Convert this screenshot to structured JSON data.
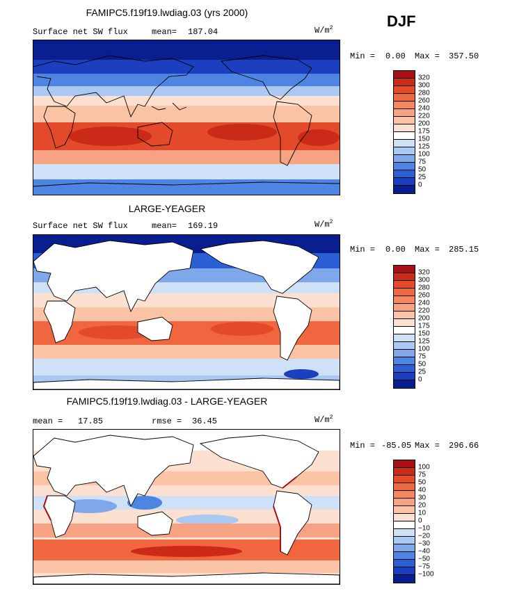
{
  "season": "DJF",
  "panels": [
    {
      "title": "FAMIPC5.f19f19.lwdiag.03 (yrs 2000)",
      "left_label": "Surface net SW flux",
      "stat1_label": "mean=",
      "stat1_value": "187.04",
      "stat2_label": "",
      "stat2_value": "",
      "units": "W/m",
      "units_exp": "2",
      "min_label": "Min =",
      "min_value": "0.00",
      "max_label": "Max =",
      "max_value": "357.50",
      "levels": [
        "320",
        "300",
        "280",
        "260",
        "240",
        "220",
        "200",
        "175",
        "150",
        "125",
        "100",
        "75",
        "50",
        "25",
        "0"
      ],
      "colors": [
        "#a50f15",
        "#cb2a18",
        "#e34a2a",
        "#f0663f",
        "#f4875f",
        "#f7a383",
        "#fbc3a5",
        "#fde0cf",
        "#ffffff",
        "#cfe1f7",
        "#a9c8f2",
        "#7ea8ea",
        "#4f85e2",
        "#2a5fd6",
        "#1c3fc0",
        "#0a1f8f"
      ],
      "map_type": "field"
    },
    {
      "title": "LARGE-YEAGER",
      "left_label": "Surface net SW flux",
      "stat1_label": "mean=",
      "stat1_value": "169.19",
      "stat2_label": "",
      "stat2_value": "",
      "units": "W/m",
      "units_exp": "2",
      "min_label": "Min =",
      "min_value": "0.00",
      "max_label": "Max =",
      "max_value": "285.15",
      "levels": [
        "320",
        "300",
        "280",
        "260",
        "240",
        "220",
        "200",
        "175",
        "150",
        "125",
        "100",
        "75",
        "50",
        "25",
        "0"
      ],
      "colors": [
        "#a50f15",
        "#cb2a18",
        "#e34a2a",
        "#f0663f",
        "#f4875f",
        "#f7a383",
        "#fbc3a5",
        "#fde0cf",
        "#ffffff",
        "#cfe1f7",
        "#a9c8f2",
        "#7ea8ea",
        "#4f85e2",
        "#2a5fd6",
        "#1c3fc0",
        "#0a1f8f"
      ],
      "map_type": "ocean"
    },
    {
      "title": "FAMIPC5.f19f19.lwdiag.03 - LARGE-YEAGER",
      "left_label": "",
      "stat1_label": "mean =",
      "stat1_value": "17.85",
      "stat2_label": "rmse =",
      "stat2_value": "36.45",
      "units": "W/m",
      "units_exp": "2",
      "min_label": "Min =",
      "min_value": "-85.05",
      "max_label": "Max =",
      "max_value": "296.66",
      "levels": [
        "100",
        "75",
        "50",
        "40",
        "30",
        "20",
        "10",
        "0",
        "−10",
        "−20",
        "−30",
        "−40",
        "−50",
        "−75",
        "−100"
      ],
      "colors": [
        "#a50f15",
        "#cb2a18",
        "#e34a2a",
        "#f0663f",
        "#f4875f",
        "#f7a383",
        "#fbc3a5",
        "#fde0cf",
        "#ffffff",
        "#cfe1f7",
        "#a9c8f2",
        "#7ea8ea",
        "#4f85e2",
        "#2a5fd6",
        "#1c3fc0",
        "#0a1f8f"
      ],
      "map_type": "diff"
    }
  ]
}
